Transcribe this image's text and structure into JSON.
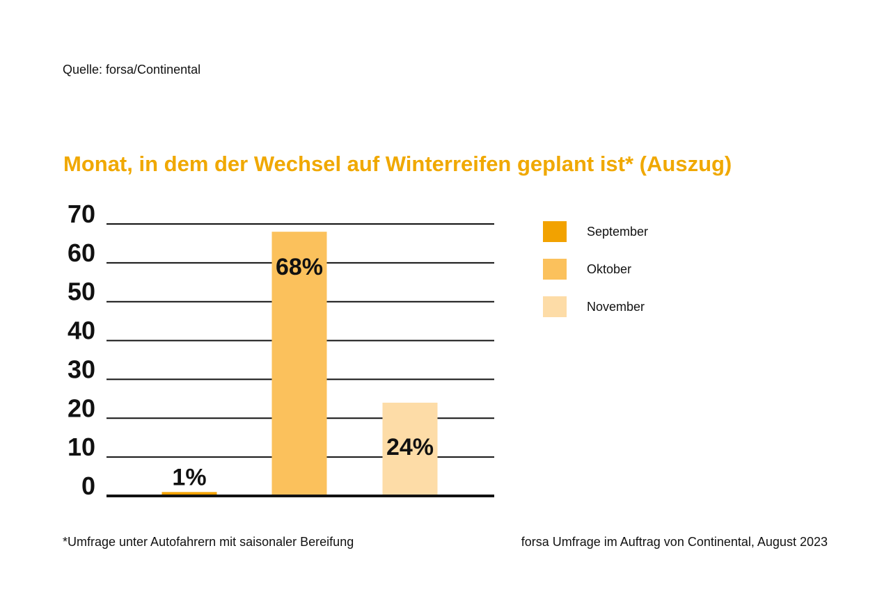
{
  "source": "Quelle: forsa/Continental",
  "footnote": "*Umfrage unter Autofahrern mit saisonaler Bereifung",
  "credit": "forsa Umfrage im Auftrag von Continental, August 2023",
  "colors": {
    "title": "#f0a800",
    "september": "#f2a200",
    "oktober": "#fbc15c",
    "november": "#fddca7",
    "gridline": "#111111"
  },
  "chart_data": {
    "type": "bar",
    "title": "Monat, in dem der Wechsel auf Winterreifen geplant ist* (Auszug)",
    "xlabel": "",
    "ylabel": "",
    "ylim": [
      0,
      70
    ],
    "y_ticks": [
      0,
      10,
      20,
      30,
      40,
      50,
      60,
      70
    ],
    "grid": true,
    "legend_position": "right",
    "categories": [
      "September",
      "Oktober",
      "November"
    ],
    "values": [
      1,
      68,
      24
    ],
    "data_labels": [
      "1%",
      "68%",
      "24%"
    ]
  }
}
